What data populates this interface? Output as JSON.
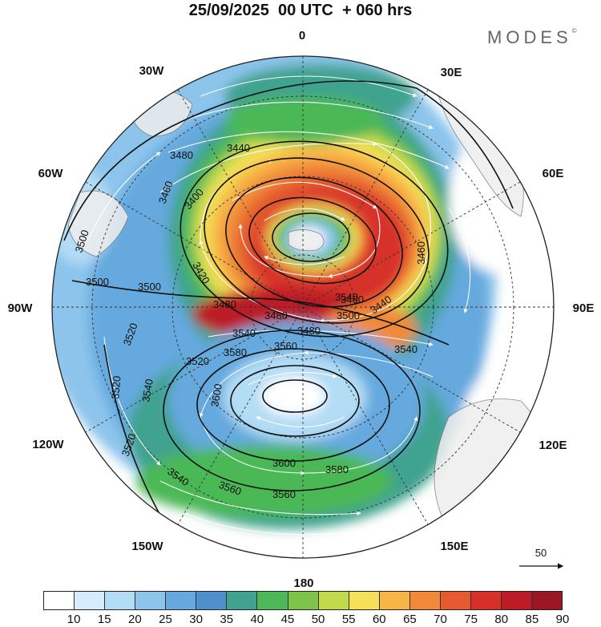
{
  "title": "25/09/2025  00 UTC  + 060 hrs",
  "brand": "MODES",
  "brand_mark": "©",
  "longitude_labels": [
    "0",
    "30E",
    "60E",
    "90E",
    "120E",
    "150E",
    "180",
    "150W",
    "120W",
    "90W",
    "60W",
    "30W"
  ],
  "contour_labels": [
    "3440",
    "3460",
    "3460",
    "3480",
    "3480",
    "3480",
    "3480",
    "3500",
    "3500",
    "3500",
    "3500",
    "3520",
    "3520",
    "3520",
    "3520",
    "3540",
    "3540",
    "3540",
    "3540",
    "3540",
    "3560",
    "3560",
    "3560",
    "3580",
    "3580",
    "3600",
    "3600",
    "3400",
    "3440",
    "3460",
    "3420"
  ],
  "reference_vector_label": "50",
  "colorbar": {
    "ticks": [
      "10",
      "15",
      "20",
      "25",
      "30",
      "35",
      "40",
      "45",
      "50",
      "55",
      "60",
      "65",
      "70",
      "75",
      "80",
      "85",
      "90"
    ],
    "colors": [
      "#ffffff",
      "#d6ecfa",
      "#b3dcf5",
      "#8cc4ec",
      "#65a9de",
      "#4f8fcb",
      "#3fa38f",
      "#4cb857",
      "#7ec44a",
      "#c2d94e",
      "#f6e05a",
      "#f7b546",
      "#f08a3a",
      "#e55b2f",
      "#d7302a",
      "#bb1c26",
      "#9a1622"
    ]
  }
}
